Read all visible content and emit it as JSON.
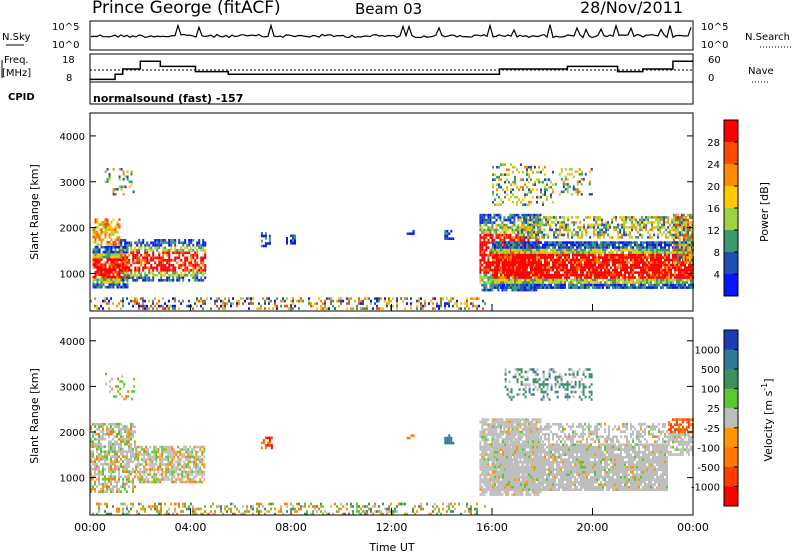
{
  "header": {
    "station": "Prince George (fitACF)",
    "beam": "Beam 03",
    "date": "28/Nov/2011"
  },
  "panels": {
    "nsky": {
      "label": "N.Sky",
      "tick_top": "10^5",
      "tick_bottom": "10^0"
    },
    "nsearch": {
      "label": "N.Search",
      "tick_top": "10^5",
      "tick_bottom": "10^0"
    },
    "freq": {
      "label_line1": "Freq.",
      "label_line2": "[MHz]",
      "tick_top": "18",
      "tick_bottom": "8"
    },
    "nave": {
      "label": "Nave",
      "tick_top": "60",
      "tick_bottom": "0"
    },
    "cpid": {
      "label": "CPID",
      "program": "normalsound (fast) -157"
    }
  },
  "chart_data": [
    {
      "type": "heatmap",
      "name": "power",
      "x_ticks": [
        "00:00",
        "04:00",
        "08:00",
        "12:00",
        "16:00",
        "20:00",
        "00:00"
      ],
      "xlim_hours": [
        0,
        24
      ],
      "ylabel": "Slant Range [km]",
      "y_ticks": [
        1000,
        2000,
        3000,
        4000
      ],
      "ylim": [
        180,
        4500
      ],
      "colorbar": {
        "label": "Power [dB]",
        "ticks": [
          "28",
          "24",
          "20",
          "16",
          "12",
          "8",
          "4"
        ],
        "colors": [
          "#ff0000",
          "#ff4a00",
          "#ff8c00",
          "#ffc800",
          "#9bd43c",
          "#3c9a6e",
          "#1e50b4",
          "#0a14ff"
        ]
      }
    },
    {
      "type": "heatmap",
      "name": "velocity",
      "x_ticks": [
        "00:00",
        "04:00",
        "08:00",
        "12:00",
        "16:00",
        "20:00",
        "00:00"
      ],
      "xlim_hours": [
        0,
        24
      ],
      "xlabel": "Time UT",
      "ylabel": "Slant Range [km]",
      "y_ticks": [
        1000,
        2000,
        3000,
        4000
      ],
      "ylim": [
        180,
        4500
      ],
      "colorbar": {
        "label": "Velocity [m s",
        "label_sup": "-1",
        "label_end": "]",
        "ticks": [
          "1000",
          "500",
          "100",
          "25",
          "-25",
          "-100",
          "-500",
          "-1000"
        ],
        "colors": [
          "#1e3cb4",
          "#2d7a96",
          "#3f9060",
          "#5ac832",
          "#bebebe",
          "#ff9600",
          "#ff7800",
          "#ff3c00",
          "#ff0000"
        ]
      }
    }
  ]
}
